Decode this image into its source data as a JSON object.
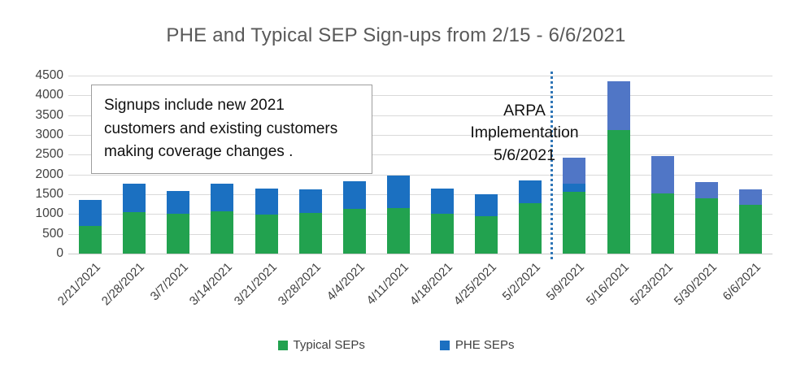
{
  "title": "PHE and Typical SEP Sign-ups from 2/15 - 6/6/2021",
  "annotation_box": {
    "text": "Signups include new 2021 customers and existing customers making coverage changes ."
  },
  "arpa_annotation": {
    "lines": [
      "ARPA",
      "Implementation",
      "5/6/2021"
    ],
    "line_style": "dotted",
    "line_color": "#2e75b6"
  },
  "legend": {
    "items": [
      {
        "label": "Typical SEPs",
        "color": "#22a24f"
      },
      {
        "label": "PHE SEPs",
        "color": "#1b70c1"
      }
    ]
  },
  "colors": {
    "typical_green": "#22a24f",
    "phe_blue": "#1b70c1",
    "post_arpa_blue": "#5076c6",
    "gridline": "#d9d9d9",
    "title_gray": "#595959",
    "axis_text": "#404040",
    "divider_blue": "#2e75b6"
  },
  "chart_data": {
    "type": "bar",
    "stacked": true,
    "title": "PHE and Typical SEP Sign-ups from 2/15 - 6/6/2021",
    "xlabel": "",
    "ylabel": "",
    "ylim": [
      0,
      4500
    ],
    "yticks": [
      0,
      500,
      1000,
      1500,
      2000,
      2500,
      3000,
      3500,
      4000,
      4500
    ],
    "grid": true,
    "legend_position": "bottom",
    "categories": [
      "2/21/2021",
      "2/28/2021",
      "3/7/2021",
      "3/14/2021",
      "3/21/2021",
      "3/28/2021",
      "4/4/2021",
      "4/11/2021",
      "4/18/2021",
      "4/25/2021",
      "5/2/2021",
      "5/9/2021",
      "5/16/2021",
      "5/23/2021",
      "5/30/2021",
      "6/6/2021"
    ],
    "series": [
      {
        "name": "Typical SEPs",
        "color": "#22a24f",
        "values": [
          700,
          1050,
          1000,
          1060,
          990,
          1020,
          1140,
          1160,
          1010,
          950,
          1270,
          1570,
          3130,
          1530,
          1400,
          1240
        ]
      },
      {
        "name": "PHE SEPs",
        "color": "#1b70c1",
        "values": [
          660,
          710,
          590,
          700,
          660,
          610,
          680,
          810,
          640,
          560,
          580,
          200,
          0,
          0,
          0,
          0
        ]
      },
      {
        "name": "PHE SEPs (lighter blue shade shown after ARPA line, not in legend)",
        "color": "#5076c6",
        "values": [
          0,
          0,
          0,
          0,
          0,
          0,
          0,
          0,
          0,
          0,
          0,
          660,
          1230,
          940,
          400,
          390
        ]
      }
    ],
    "totals": [
      1360,
      1760,
      1590,
      1760,
      1650,
      1630,
      1820,
      1970,
      1650,
      1510,
      1850,
      2430,
      4360,
      2470,
      1800,
      1630
    ],
    "vline": {
      "between_categories": [
        "5/2/2021",
        "5/9/2021"
      ],
      "label": "ARPA Implementation 5/6/2021"
    }
  }
}
